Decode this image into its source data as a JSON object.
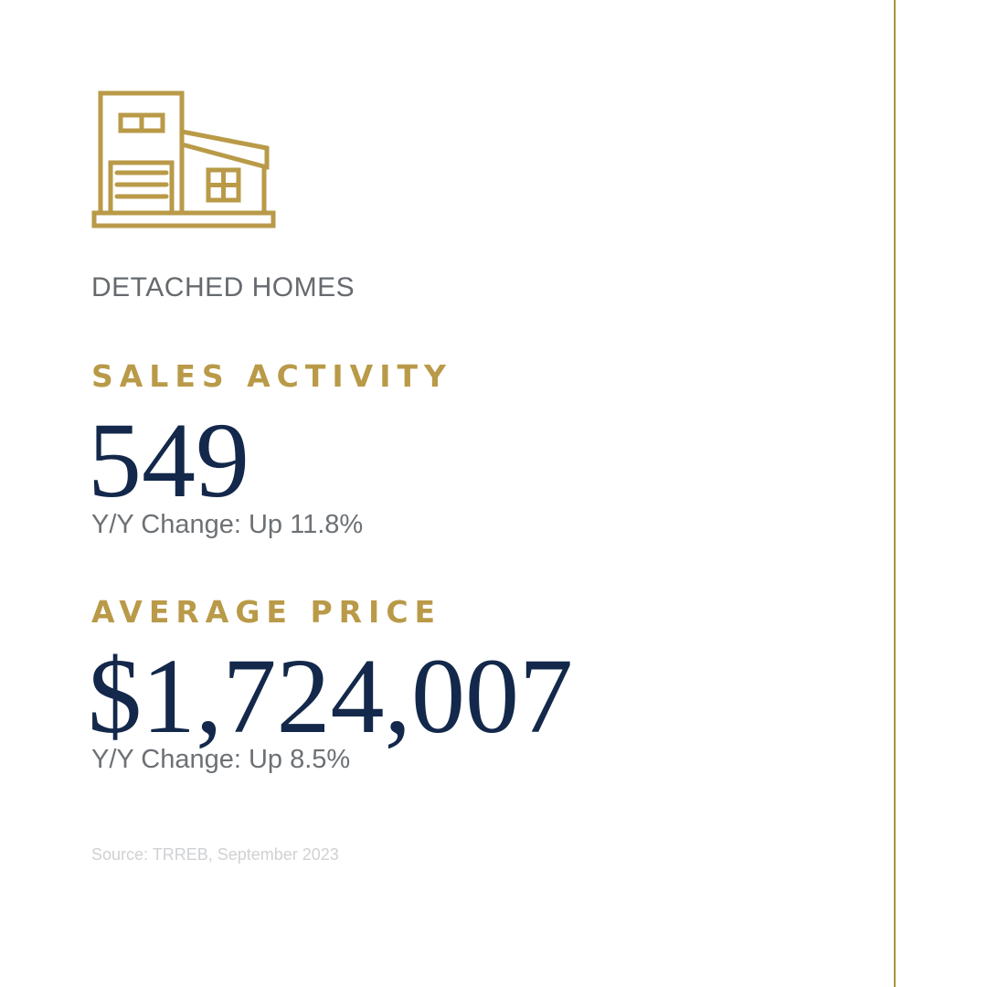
{
  "colors": {
    "gold": "#b99a48",
    "navy": "#13284a",
    "gray_text": "#6d7175",
    "light_gray": "#cfd1d3",
    "rule": "#a8963e"
  },
  "icon": "detached-house-icon",
  "category": "DETACHED HOMES",
  "sales": {
    "label": "SALES ACTIVITY",
    "value": "549",
    "change": "Y/Y Change: Up 11.8%"
  },
  "price": {
    "label": "AVERAGE PRICE",
    "value": "$1,724,007",
    "change": "Y/Y Change: Up 8.5%"
  },
  "source": "Source: TRREB, September 2023"
}
